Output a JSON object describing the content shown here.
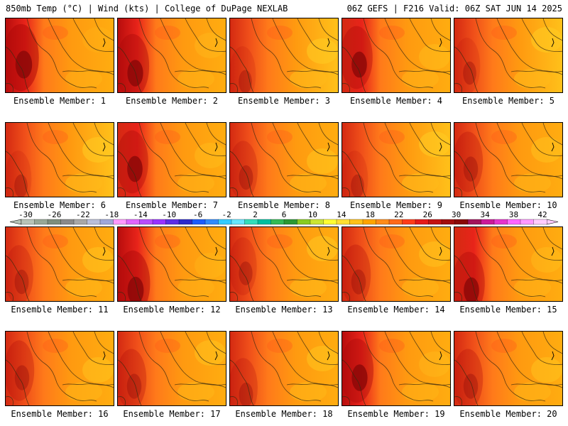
{
  "header": {
    "left": "850mb Temp (°C) | Wind (kts) | College of DuPage NEXLAB",
    "right": "06Z GEFS | F216 Valid: 06Z SAT JUN 14 2025"
  },
  "panels": [
    {
      "label": "Ensemble Member: 1",
      "heat": 0.95
    },
    {
      "label": "Ensemble Member: 2",
      "heat": 0.85
    },
    {
      "label": "Ensemble Member: 3",
      "heat": 0.55
    },
    {
      "label": "Ensemble Member: 4",
      "heat": 0.8
    },
    {
      "label": "Ensemble Member: 5",
      "heat": 0.55
    },
    {
      "label": "Ensemble Member: 6",
      "heat": 0.55
    },
    {
      "label": "Ensemble Member: 7",
      "heat": 0.8
    },
    {
      "label": "Ensemble Member: 8",
      "heat": 0.65
    },
    {
      "label": "Ensemble Member: 9",
      "heat": 0.55
    },
    {
      "label": "Ensemble Member: 10",
      "heat": 0.7
    },
    {
      "label": "Ensemble Member: 11",
      "heat": 0.65
    },
    {
      "label": "Ensemble Member: 12",
      "heat": 0.9
    },
    {
      "label": "Ensemble Member: 13",
      "heat": 0.6
    },
    {
      "label": "Ensemble Member: 14",
      "heat": 0.7
    },
    {
      "label": "Ensemble Member: 15",
      "heat": 0.8
    },
    {
      "label": "Ensemble Member: 16",
      "heat": 0.7
    },
    {
      "label": "Ensemble Member: 17",
      "heat": 0.7
    },
    {
      "label": "Ensemble Member: 18",
      "heat": 0.65
    },
    {
      "label": "Ensemble Member: 19",
      "heat": 0.85
    },
    {
      "label": "Ensemble Member: 20",
      "heat": 0.7
    }
  ],
  "colorbar": {
    "ticks": [
      "-30",
      "-26",
      "-22",
      "-18",
      "-14",
      "-10",
      "-6",
      "-2",
      "2",
      "6",
      "10",
      "14",
      "18",
      "22",
      "26",
      "30",
      "34",
      "38",
      "42"
    ],
    "colors": [
      "#b8c4b8",
      "#97a897",
      "#7d8f7d",
      "#8a8a8a",
      "#a8a8a8",
      "#b9bfd9",
      "#9fa8d8",
      "#ff99ff",
      "#e066ff",
      "#b84dff",
      "#9933ff",
      "#5c2ee6",
      "#2b2bcc",
      "#1a5cff",
      "#2e8bff",
      "#33ccff",
      "#66e6ff",
      "#33ddbb",
      "#00c0a0",
      "#33bb55",
      "#2a9933",
      "#88cc22",
      "#cce633",
      "#ffff33",
      "#ffe033",
      "#ffc21a",
      "#ffa500",
      "#ff8c1a",
      "#ff6a1a",
      "#ff3d1a",
      "#e61a1a",
      "#c41212",
      "#a30d0d",
      "#8a0808",
      "#a3145c",
      "#cc1a99",
      "#e633cc",
      "#ff66ff",
      "#ff99ff",
      "#ffccff"
    ]
  }
}
